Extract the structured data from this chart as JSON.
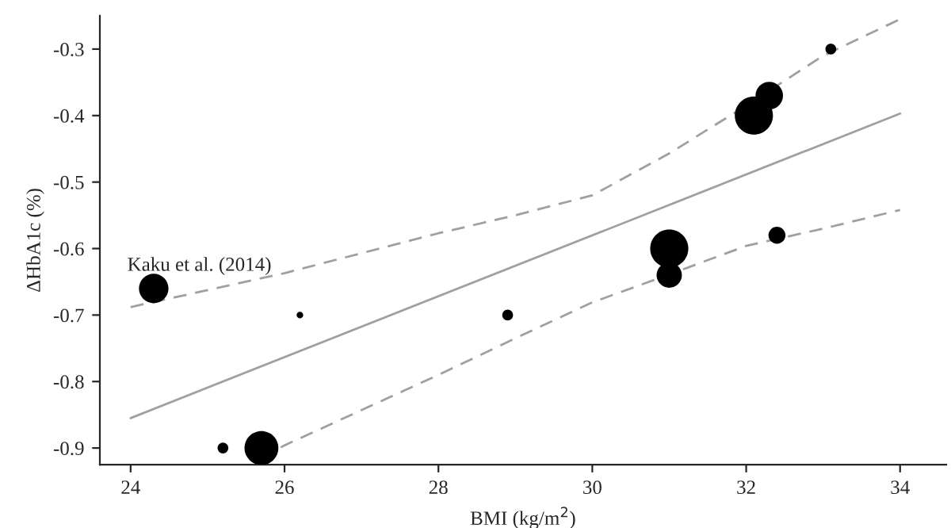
{
  "chart_data": {
    "type": "bubble",
    "xlabel": "BMI (kg/m$^{2}$)",
    "ylabel": "ΔHbA1c (%)",
    "xlim": [
      23.6,
      34.6
    ],
    "ylim": [
      -0.925,
      -0.25
    ],
    "xticks": [
      24,
      26,
      28,
      30,
      32,
      34
    ],
    "yticks": [
      -0.9,
      -0.8,
      -0.7,
      -0.6,
      -0.5,
      -0.4,
      -0.3
    ],
    "grid": false,
    "legend": false,
    "series": [
      {
        "color": "#000000",
        "x": [
          24.3,
          25.2,
          25.7,
          26.2,
          28.9,
          31.0,
          31.0,
          32.1,
          32.3,
          32.4,
          33.1
        ],
        "values": [
          -0.66,
          -0.9,
          -0.9,
          -0.7,
          -0.7,
          -0.6,
          -0.64,
          -0.4,
          -0.37,
          -0.58,
          -0.3
        ],
        "sizes": [
          0.6,
          0.08,
          0.79,
          0.03,
          0.08,
          1,
          0.44,
          1,
          0.52,
          0.2,
          0.08
        ]
      },
      {
        "type": "line",
        "color": "#a0a0a0",
        "line_style": "solid",
        "x": [
          24,
          34
        ],
        "values": [
          -0.855,
          -0.397
        ]
      },
      {
        "type": "line",
        "color": "#a0a0a0",
        "line_style": "dashed",
        "x": [
          24,
          26,
          28,
          29,
          30,
          31,
          32,
          33,
          34
        ],
        "values": [
          -0.688,
          -0.637,
          -0.577,
          -0.55,
          -0.52,
          -0.457,
          -0.385,
          -0.31,
          -0.255
        ]
      },
      {
        "type": "line",
        "color": "#a0a0a0",
        "line_style": "dashed",
        "x": [
          25.7,
          26,
          28,
          29,
          30,
          31,
          32,
          33,
          34
        ],
        "values": [
          -0.915,
          -0.896,
          -0.79,
          -0.735,
          -0.681,
          -0.639,
          -0.596,
          -0.57,
          -0.542
        ]
      }
    ],
    "annotations": [
      {
        "text": "Kaku et al. (2014)",
        "x": 24.3,
        "y": -0.66
      }
    ]
  }
}
